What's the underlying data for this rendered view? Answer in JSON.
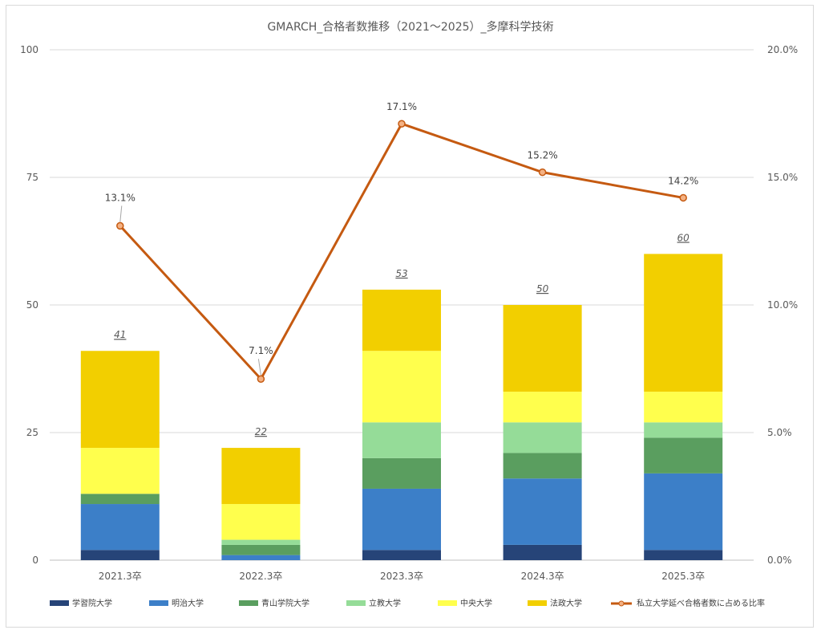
{
  "chart_data": {
    "type": "bar",
    "stacked": true,
    "title": "GMARCH_合格者数推移（2021～2025）_多摩科学技術",
    "categories": [
      "2021.3卒",
      "2022.3卒",
      "2023.3卒",
      "2024.3卒",
      "2025.3卒"
    ],
    "series": [
      {
        "name": "学習院大学",
        "color": "#264478",
        "values": [
          2,
          0,
          2,
          3,
          2
        ]
      },
      {
        "name": "明治大学",
        "color": "#3c7fc8",
        "values": [
          9,
          1,
          12,
          13,
          15
        ]
      },
      {
        "name": "青山学院大学",
        "color": "#5a9e5f",
        "values": [
          2,
          2,
          6,
          5,
          7
        ]
      },
      {
        "name": "立教大学",
        "color": "#95dc98",
        "values": [
          0,
          1,
          7,
          6,
          3
        ]
      },
      {
        "name": "中央大学",
        "color": "#ffff4d",
        "values": [
          9,
          7,
          14,
          6,
          6
        ]
      },
      {
        "name": "法政大学",
        "color": "#f2cf00",
        "values": [
          19,
          11,
          12,
          17,
          27
        ]
      }
    ],
    "totals": [
      41,
      22,
      53,
      50,
      60
    ],
    "line_series": {
      "name": "私立大学延べ合格者数に占める比率",
      "color": "#c55a11",
      "values": [
        13.1,
        7.1,
        17.1,
        15.2,
        14.2
      ],
      "labels": [
        "13.1%",
        "7.1%",
        "17.1%",
        "15.2%",
        "14.2%"
      ]
    },
    "ylim": [
      0,
      100
    ],
    "y_ticks": [
      "0",
      "25",
      "50",
      "75",
      "100"
    ],
    "y2lim": [
      0,
      20
    ],
    "y2_ticks": [
      "0.0%",
      "5.0%",
      "10.0%",
      "15.0%",
      "20.0%"
    ],
    "grid": true,
    "legend_position": "bottom"
  }
}
